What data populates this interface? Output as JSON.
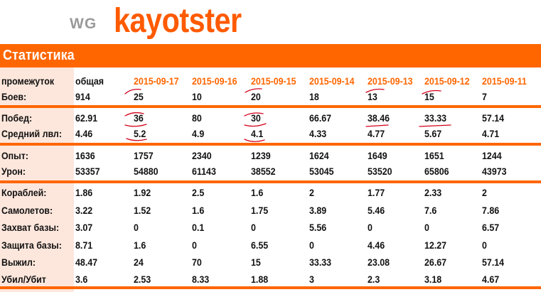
{
  "header": {
    "brand": "WG",
    "player": "kayotster"
  },
  "section": {
    "title": "Статистика"
  },
  "colors": {
    "accent": "#ff6600",
    "label_bg": "#fde7dc",
    "annotation": "#d4001a"
  },
  "table": {
    "header_label": "промежуток",
    "columns": [
      "общая",
      "2015-09-17",
      "2015-09-16",
      "2015-09-15",
      "2015-09-14",
      "2015-09-13",
      "2015-09-12",
      "2015-09-11"
    ],
    "rows": [
      {
        "label": "Боев:",
        "values": [
          "914",
          "25",
          "10",
          "20",
          "18",
          "13",
          "15",
          "7"
        ]
      },
      {
        "label": "Побед:",
        "values": [
          "62.91",
          "36",
          "80",
          "30",
          "66.67",
          "38.46",
          "33.33",
          "57.14"
        ]
      },
      {
        "label": "Средний лвл:",
        "values": [
          "4.46",
          "5.2",
          "4.9",
          "4.1",
          "4.33",
          "4.77",
          "5.67",
          "4.71"
        ]
      },
      {
        "label": "Опыт:",
        "values": [
          "1636",
          "1757",
          "2340",
          "1239",
          "1624",
          "1649",
          "1651",
          "1244"
        ]
      },
      {
        "label": "Урон:",
        "values": [
          "53357",
          "54880",
          "61143",
          "38552",
          "53045",
          "53520",
          "65806",
          "43973"
        ]
      },
      {
        "label": "Кораблей:",
        "values": [
          "1.86",
          "1.92",
          "2.5",
          "1.6",
          "2",
          "1.77",
          "2.33",
          "2"
        ]
      },
      {
        "label": "Самолетов:",
        "values": [
          "3.22",
          "1.52",
          "1.6",
          "1.75",
          "3.89",
          "5.46",
          "7.6",
          "7.86"
        ]
      },
      {
        "label": "Захват базы:",
        "values": [
          "3.07",
          "0",
          "0.1",
          "0",
          "5.56",
          "0",
          "0",
          "6.57"
        ]
      },
      {
        "label": "Защита базы:",
        "values": [
          "8.71",
          "1.6",
          "0",
          "6.55",
          "0",
          "4.46",
          "12.27",
          "0"
        ]
      },
      {
        "label": "Выжил:",
        "values": [
          "48.47",
          "24",
          "70",
          "15",
          "33.33",
          "23.08",
          "26.67",
          "57.14"
        ]
      },
      {
        "label": "Убил/Убит",
        "values": [
          "3.6",
          "2.53",
          "8.33",
          "1.88",
          "3",
          "2.3",
          "3.18",
          "4.67"
        ]
      }
    ]
  }
}
